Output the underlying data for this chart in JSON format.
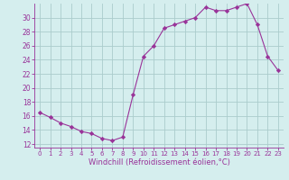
{
  "x": [
    0,
    1,
    2,
    3,
    4,
    5,
    6,
    7,
    8,
    9,
    10,
    11,
    12,
    13,
    14,
    15,
    16,
    17,
    18,
    19,
    20,
    21,
    22,
    23
  ],
  "y": [
    16.5,
    15.8,
    15.0,
    14.5,
    13.8,
    13.5,
    12.8,
    12.5,
    13.0,
    19.0,
    24.5,
    26.0,
    28.5,
    29.0,
    29.5,
    30.0,
    31.5,
    31.0,
    31.0,
    31.5,
    32.0,
    29.0,
    24.5,
    22.5
  ],
  "line_color": "#993399",
  "marker": "D",
  "marker_size": 2.2,
  "bg_color": "#d5eeee",
  "grid_color": "#aacccc",
  "xlabel": "Windchill (Refroidissement éolien,°C)",
  "xlim": [
    -0.5,
    23.5
  ],
  "ylim": [
    11.5,
    32.0
  ],
  "yticks": [
    12,
    14,
    16,
    18,
    20,
    22,
    24,
    26,
    28,
    30
  ],
  "xticks": [
    0,
    1,
    2,
    3,
    4,
    5,
    6,
    7,
    8,
    9,
    10,
    11,
    12,
    13,
    14,
    15,
    16,
    17,
    18,
    19,
    20,
    21,
    22,
    23
  ],
  "tick_color": "#993399",
  "font_size_xtick": 5.0,
  "font_size_ytick": 5.5,
  "font_size_xlabel": 6.0
}
